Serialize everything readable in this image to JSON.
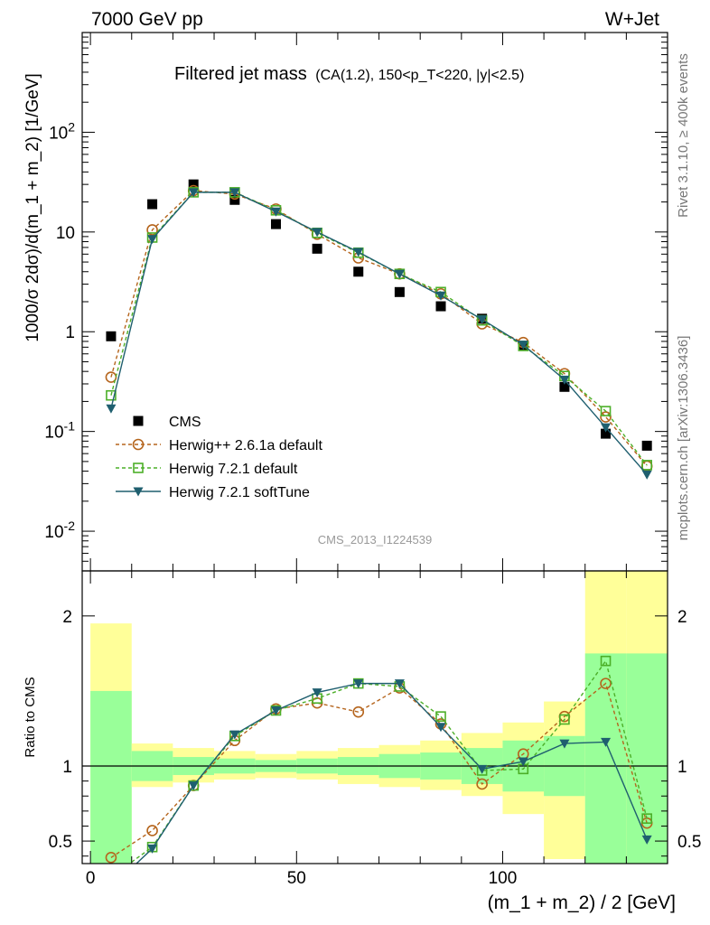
{
  "header": {
    "energy_label": "7000 GeV pp",
    "process_label": "W+Jet"
  },
  "side_labels": {
    "rivet": "Rivet 3.1.10, ≥ 400k events",
    "mcplots": "mcplots.cern.ch [arXiv:1306.3436]"
  },
  "watermark": "CMS_2013_I1224539",
  "chart_data": {
    "type": "scatter",
    "title": "Filtered jet mass",
    "subtitle": "(CA(1.2), 150<p_T<220, |y|<2.5)",
    "xlabel": "(m_1 + m_2) / 2 [GeV]",
    "ylabel": "1000/σ 2dσ)/d(m_1 + m_2) [1/GeV]",
    "ratio_ylabel": "Ratio to CMS",
    "xlim": [
      -2,
      140
    ],
    "ylim": [
      0.004,
      1000
    ],
    "ratio_ylim": [
      0.35,
      2.3
    ],
    "yscale": "log",
    "x_ticks": [
      "0",
      "50",
      "100"
    ],
    "y_ticks": [
      "10^-2",
      "10^-1",
      "1",
      "10",
      "10^2"
    ],
    "ratio_ticks": [
      "0.5",
      "1",
      "2"
    ],
    "legend_position": "lower-left",
    "bins": [
      [
        0,
        10
      ],
      [
        10,
        20
      ],
      [
        20,
        30
      ],
      [
        30,
        40
      ],
      [
        40,
        50
      ],
      [
        50,
        60
      ],
      [
        60,
        70
      ],
      [
        70,
        80
      ],
      [
        80,
        90
      ],
      [
        90,
        100
      ],
      [
        100,
        110
      ],
      [
        110,
        120
      ],
      [
        120,
        130
      ],
      [
        130,
        140
      ]
    ],
    "x": [
      5,
      15,
      25,
      35,
      45,
      55,
      65,
      75,
      85,
      95,
      105,
      115,
      125,
      135
    ],
    "series": [
      {
        "name": "CMS",
        "color": "#000000",
        "marker": "square-filled",
        "values": [
          0.9,
          19,
          30,
          21,
          12,
          6.8,
          4.0,
          2.5,
          1.8,
          1.35,
          0.72,
          0.28,
          0.095,
          0.072
        ]
      },
      {
        "name": "Herwig++ 2.6.1a default",
        "color": "#b5651d",
        "marker": "circle-open",
        "values": [
          0.35,
          10.5,
          26,
          24,
          17,
          9.5,
          5.5,
          3.8,
          2.4,
          1.2,
          0.78,
          0.38,
          0.14,
          0.045
        ],
        "ratio": [
          0.39,
          0.57,
          0.87,
          1.17,
          1.38,
          1.42,
          1.36,
          1.52,
          1.28,
          0.88,
          1.08,
          1.33,
          1.55,
          0.62
        ]
      },
      {
        "name": "Herwig 7.2.1 default",
        "color": "#4caf28",
        "marker": "square-open",
        "values": [
          0.23,
          8.8,
          25,
          25,
          16.5,
          9.8,
          6.2,
          3.8,
          2.5,
          1.3,
          0.72,
          0.36,
          0.16,
          0.046
        ],
        "ratio": [
          0.26,
          0.46,
          0.87,
          1.2,
          1.37,
          1.45,
          1.55,
          1.53,
          1.33,
          0.97,
          0.98,
          1.31,
          1.7,
          0.65
        ]
      },
      {
        "name": "Herwig 7.2.1 softTune",
        "color": "#1f5f6f",
        "marker": "triangle-down-filled",
        "values": [
          0.17,
          8.5,
          25,
          25,
          16,
          10,
          6.3,
          3.8,
          2.3,
          1.33,
          0.74,
          0.33,
          0.11,
          0.037
        ],
        "ratio": [
          0.19,
          0.45,
          0.87,
          1.21,
          1.37,
          1.49,
          1.55,
          1.55,
          1.26,
          0.98,
          1.03,
          1.15,
          1.16,
          0.51
        ]
      }
    ],
    "uncertainty_bands": {
      "green_lo": [
        0.3,
        0.9,
        0.94,
        0.95,
        0.96,
        0.95,
        0.94,
        0.92,
        0.91,
        0.88,
        0.83,
        0.8,
        0.33,
        0.33
      ],
      "green_hi": [
        1.5,
        1.1,
        1.06,
        1.05,
        1.04,
        1.05,
        1.06,
        1.08,
        1.09,
        1.12,
        1.17,
        1.2,
        1.75,
        1.75
      ],
      "yellow_lo": [
        0.3,
        0.86,
        0.89,
        0.91,
        0.92,
        0.91,
        0.88,
        0.86,
        0.84,
        0.8,
        0.68,
        0.38,
        0.33,
        0.33
      ],
      "yellow_hi": [
        1.95,
        1.15,
        1.12,
        1.1,
        1.08,
        1.1,
        1.12,
        1.14,
        1.17,
        1.22,
        1.29,
        1.43,
        2.3,
        2.3
      ]
    }
  }
}
